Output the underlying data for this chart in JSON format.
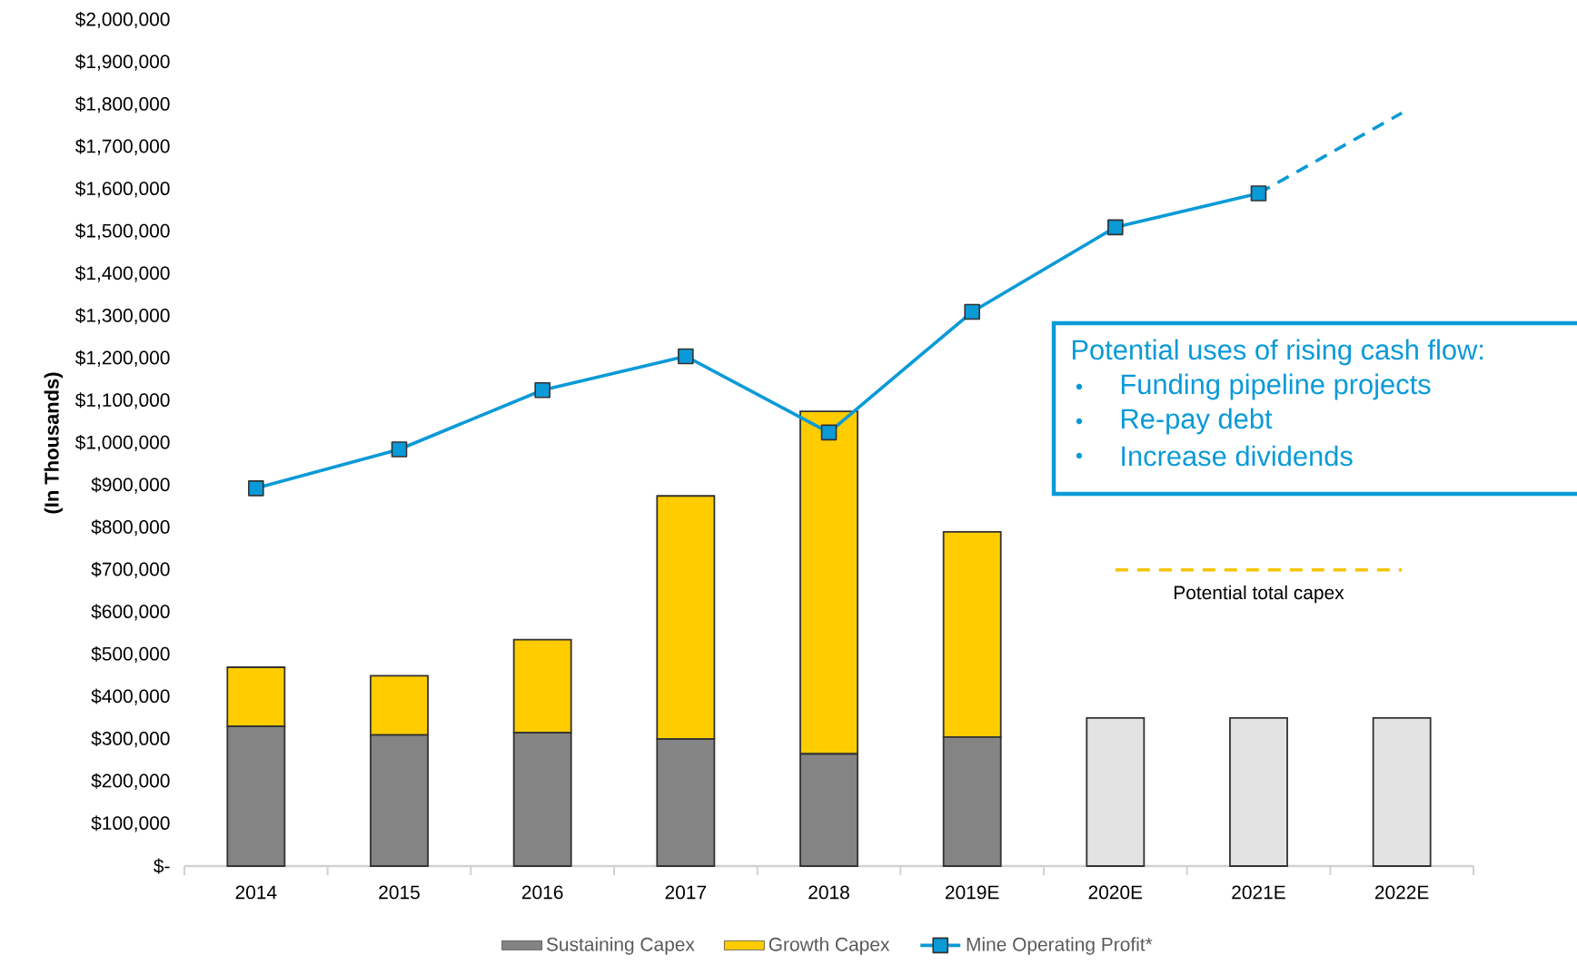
{
  "chart_data": {
    "type": "bar",
    "stacked": true,
    "ylabel": "(In Thousands)",
    "categories": [
      "2014",
      "2015",
      "2016",
      "2017",
      "2018",
      "2019E",
      "2020E",
      "2021E",
      "2022E"
    ],
    "series": [
      {
        "name": "Sustaining Capex",
        "color": "#848484",
        "colors": [
          "#848484",
          "#848484",
          "#848484",
          "#848484",
          "#848484",
          "#848484",
          "#e3e3e3",
          "#e3e3e3",
          "#e3e3e3"
        ],
        "values": [
          330000,
          310000,
          315000,
          300000,
          265000,
          305000,
          350000,
          350000,
          350000
        ]
      },
      {
        "name": "Growth Capex",
        "color": "#ffcc00",
        "values": [
          140000,
          140000,
          220000,
          575000,
          810000,
          485000,
          null,
          null,
          null
        ]
      },
      {
        "name": "Mine Operating Profit*",
        "type": "line",
        "color": "#0a9ad7",
        "marker": "square",
        "line_style": "solid",
        "values": [
          893000,
          985000,
          1125000,
          1205000,
          1025000,
          1310000,
          1510000,
          1590000,
          null
        ]
      },
      {
        "type": "line",
        "color": "#0a9ad7",
        "line_style": "dashed",
        "values": [
          null,
          null,
          null,
          null,
          null,
          null,
          null,
          1590000,
          1780000
        ]
      },
      {
        "type": "line",
        "color": "#f5c400",
        "line_style": "dashed",
        "values": [
          null,
          null,
          null,
          null,
          null,
          null,
          700000,
          700000,
          700000
        ]
      }
    ],
    "ylim": [
      0,
      2000000
    ],
    "yticks": [
      {
        "value": 0,
        "label": "$-"
      },
      {
        "value": 100000,
        "label": "$100,000"
      },
      {
        "value": 200000,
        "label": "$200,000"
      },
      {
        "value": 300000,
        "label": "$300,000"
      },
      {
        "value": 400000,
        "label": "$400,000"
      },
      {
        "value": 500000,
        "label": "$500,000"
      },
      {
        "value": 600000,
        "label": "$600,000"
      },
      {
        "value": 700000,
        "label": "$700,000"
      },
      {
        "value": 800000,
        "label": "$800,000"
      },
      {
        "value": 900000,
        "label": "$900,000"
      },
      {
        "value": 1000000,
        "label": "$1,000,000"
      },
      {
        "value": 1100000,
        "label": "$1,100,000"
      },
      {
        "value": 1200000,
        "label": "$1,200,000"
      },
      {
        "value": 1300000,
        "label": "$1,300,000"
      },
      {
        "value": 1400000,
        "label": "$1,400,000"
      },
      {
        "value": 1500000,
        "label": "$1,500,000"
      },
      {
        "value": 1600000,
        "label": "$1,600,000"
      },
      {
        "value": 1700000,
        "label": "$1,700,000"
      },
      {
        "value": 1800000,
        "label": "$1,800,000"
      },
      {
        "value": 1900000,
        "label": "$1,900,000"
      },
      {
        "value": 2000000,
        "label": "$2,000,000"
      }
    ],
    "legend": "bottom",
    "annotations": [
      "Potential uses of rising cash flow:",
      "Funding pipeline projects",
      "Re-pay debt",
      "Increase dividends",
      "Potential total capex"
    ]
  }
}
